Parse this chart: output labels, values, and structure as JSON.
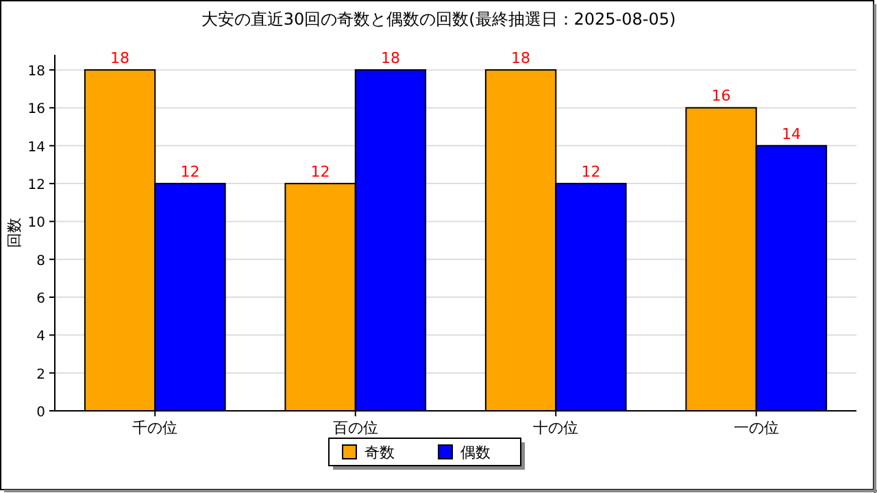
{
  "chart_data": {
    "type": "bar",
    "title": "大安の直近30回の奇数と偶数の回数(最終抽選日：2025-08-05)",
    "ylabel": "回数",
    "categories": [
      "千の位",
      "百の位",
      "十の位",
      "一の位"
    ],
    "series": [
      {
        "name": "奇数",
        "color": "#ffa500",
        "values": [
          18,
          12,
          18,
          16
        ]
      },
      {
        "name": "偶数",
        "color": "#0000ff",
        "values": [
          12,
          18,
          12,
          14
        ]
      }
    ],
    "ylim": [
      0,
      18.8
    ],
    "yticks": [
      0,
      2,
      4,
      6,
      8,
      10,
      12,
      14,
      16,
      18
    ],
    "grid": "y",
    "legend": "bottom",
    "data_labels": true
  }
}
